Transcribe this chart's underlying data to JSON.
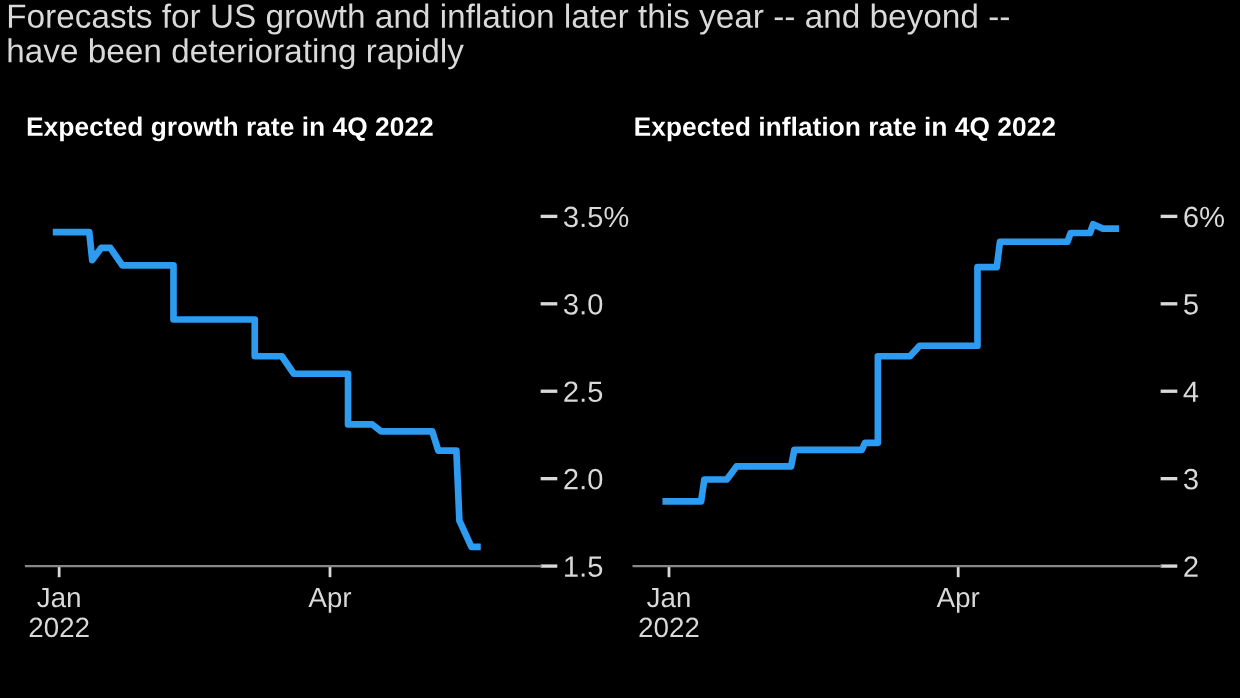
{
  "chart_data": [
    {
      "type": "line",
      "title": "Forecasts for US growth and inflation later this year -- and beyond --\nhave been deteriorating rapidly",
      "subtitle": "Expected growth rate in 4Q 2022",
      "series": [
        {
          "color": "#2d9bf0",
          "x": [
            "2021-12-31",
            "2022-01-11",
            "2022-01-12",
            "2022-01-15",
            "2022-01-18",
            "2022-01-22",
            "2022-02-08",
            "2022-02-08",
            "2022-03-07",
            "2022-03-07",
            "2022-03-16",
            "2022-03-20",
            "2022-04-07",
            "2022-04-07",
            "2022-04-15",
            "2022-04-18",
            "2022-05-05",
            "2022-05-07",
            "2022-05-13",
            "2022-05-14",
            "2022-05-18",
            "2022-05-20"
          ],
          "values": [
            3.41,
            3.41,
            3.25,
            3.32,
            3.32,
            3.22,
            3.22,
            2.91,
            2.91,
            2.7,
            2.7,
            2.6,
            2.6,
            2.31,
            2.31,
            2.27,
            2.27,
            2.16,
            2.16,
            1.76,
            1.61,
            1.61
          ]
        }
      ],
      "xlim": [
        "2021-12-21",
        "2022-06-10"
      ],
      "xticks": [
        {
          "value": "2022-01-01",
          "label": "Jan\n2022"
        },
        {
          "value": "2022-04-01",
          "label": "Apr"
        }
      ],
      "ylim": [
        1.5,
        3.5
      ],
      "yticks": [
        1.5,
        {
          "value": 2,
          "label": "2.0"
        },
        2.5,
        {
          "value": 3,
          "label": "3.0"
        },
        {
          "value": 3.5,
          "label": "3.5%"
        }
      ],
      "grid": false
    },
    {
      "type": "line",
      "subtitle": "Expected inflation rate in 4Q 2022",
      "series": [
        {
          "color": "#2d9bf0",
          "x": [
            "2021-12-31",
            "2022-01-11",
            "2022-01-12",
            "2022-01-19",
            "2022-01-22",
            "2022-02-08",
            "2022-02-09",
            "2022-03-02",
            "2022-03-03",
            "2022-03-07",
            "2022-03-07",
            "2022-03-17",
            "2022-03-20",
            "2022-04-07",
            "2022-04-07",
            "2022-04-13",
            "2022-04-14",
            "2022-05-05",
            "2022-05-06",
            "2022-05-12",
            "2022-05-13",
            "2022-05-16",
            "2022-05-20"
          ],
          "values": [
            2.74,
            2.74,
            2.99,
            2.99,
            3.14,
            3.14,
            3.33,
            3.33,
            3.41,
            3.41,
            4.4,
            4.4,
            4.52,
            4.52,
            5.42,
            5.42,
            5.71,
            5.71,
            5.81,
            5.81,
            5.91,
            5.86,
            5.86
          ]
        }
      ],
      "xlim": [
        "2021-12-21",
        "2022-06-03"
      ],
      "xticks": [
        {
          "value": "2022-01-01",
          "label": "Jan\n2022"
        },
        {
          "value": "2022-04-01",
          "label": "Apr"
        }
      ],
      "ylim": [
        2,
        6
      ],
      "yticks": [
        2,
        3,
        4,
        5,
        {
          "value": 6,
          "label": "6%"
        }
      ],
      "grid": false
    }
  ]
}
